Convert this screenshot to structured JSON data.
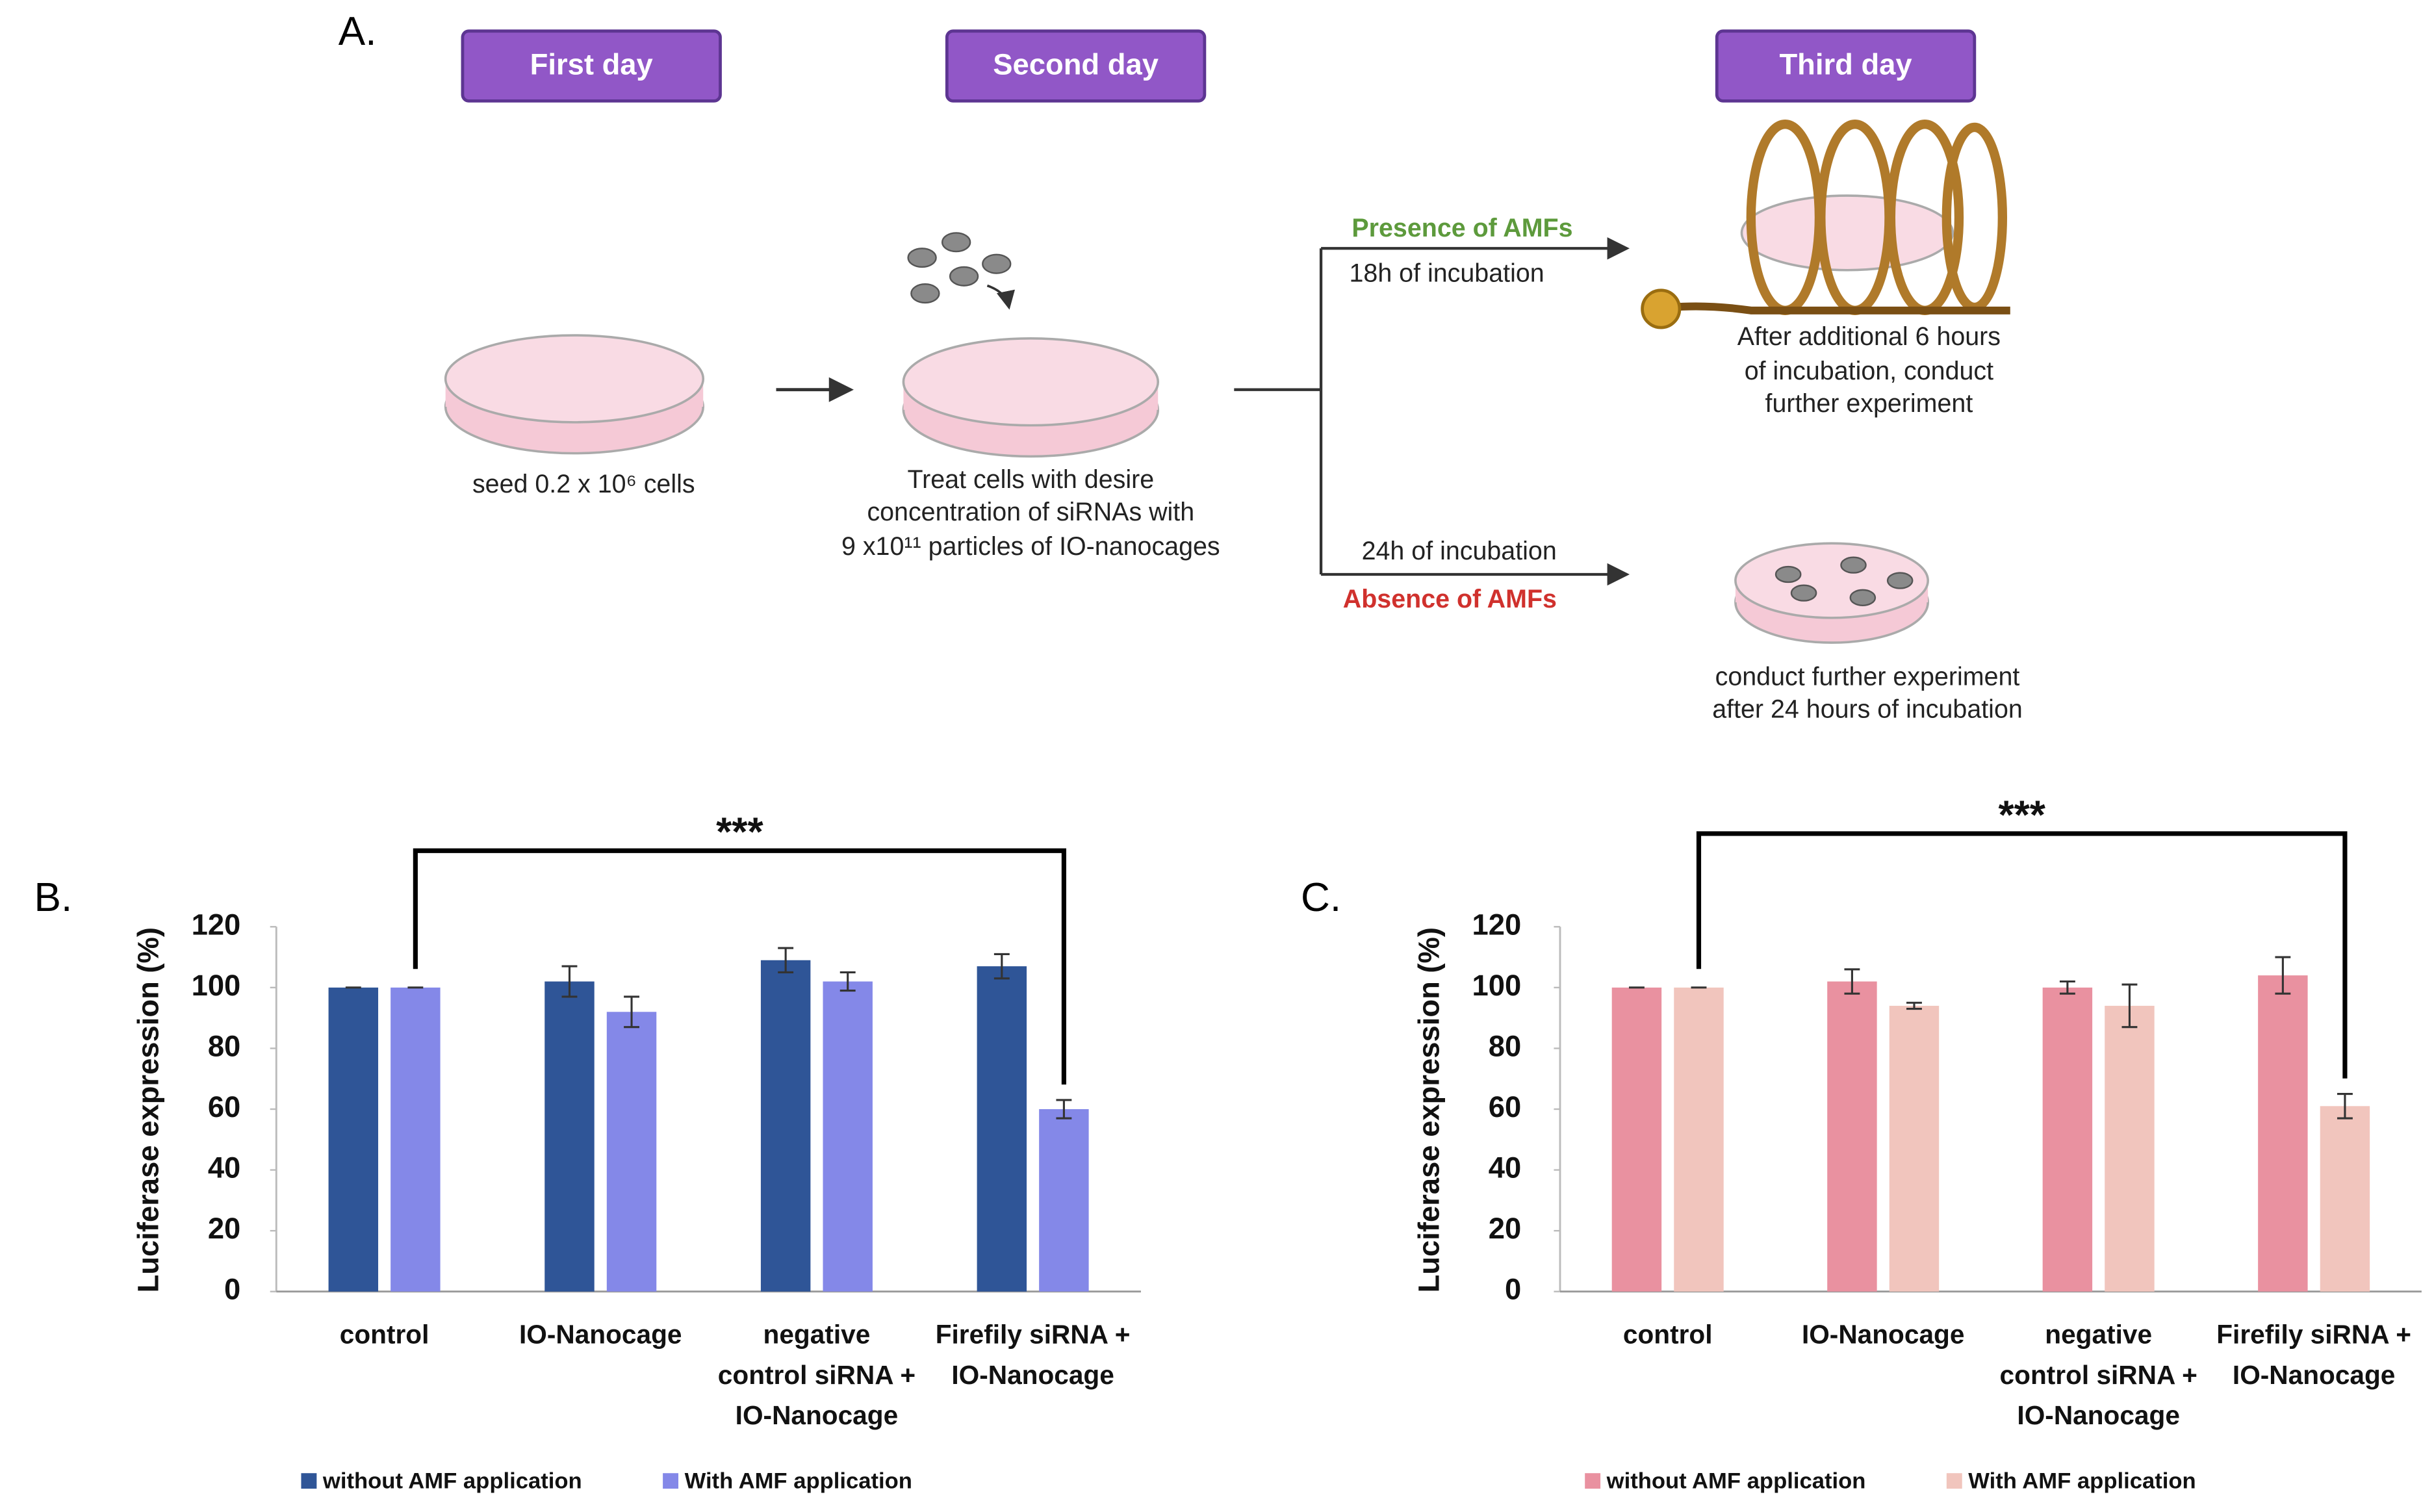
{
  "diagram": {
    "panel": "A.",
    "days": [
      "First day",
      "Second day",
      "Third day"
    ],
    "seed_text": "seed 0.2 x 10⁶ cells",
    "treat_text": [
      "Treat cells with desire",
      "concentration of siRNAs with",
      "9 x10¹¹ particles of IO-nanocages"
    ],
    "presence": "Presence of AMFs",
    "presence_time": "18h of incubation",
    "absence_time": "24h of incubation",
    "absence": "Absence of AMFs",
    "presence_result": [
      "After additional 6 hours",
      "of incubation, conduct",
      "further experiment"
    ],
    "absence_result": [
      "conduct further experiment",
      "after 24 hours of incubation"
    ]
  },
  "chart_data": [
    {
      "type": "bar",
      "panel": "B.",
      "ylabel": "Luciferase expression (%)",
      "categories": [
        [
          "control"
        ],
        [
          "IO-Nanocage"
        ],
        [
          "negative",
          "control siRNA +",
          "IO-Nanocage"
        ],
        [
          "Firefily siRNA +",
          "IO-Nanocage"
        ]
      ],
      "series": [
        {
          "name": "without AMF application",
          "color": "#2f5597",
          "values": [
            100,
            102,
            109,
            107
          ],
          "errors": [
            0,
            5,
            4,
            4
          ]
        },
        {
          "name": "With AMF application",
          "color": "#8488e8",
          "values": [
            100,
            92,
            102,
            60
          ],
          "errors": [
            0,
            5,
            3,
            3
          ]
        }
      ],
      "ylim": [
        0,
        120
      ],
      "yticks": [
        0,
        20,
        40,
        60,
        80,
        100,
        120
      ],
      "grid": false,
      "annotation": "***",
      "legend": "bottom"
    },
    {
      "type": "bar",
      "panel": "C.",
      "ylabel": "Luciferase expression (%)",
      "categories": [
        [
          "control"
        ],
        [
          "IO-Nanocage"
        ],
        [
          "negative",
          "control siRNA +",
          "IO-Nanocage"
        ],
        [
          "Firefily siRNA +",
          "IO-Nanocage"
        ]
      ],
      "series": [
        {
          "name": "without AMF application",
          "color": "#e991a0",
          "values": [
            100,
            102,
            100,
            104
          ],
          "errors": [
            0,
            4,
            2,
            6
          ]
        },
        {
          "name": "With AMF application",
          "color": "#f1c5bd",
          "values": [
            100,
            94,
            94,
            61
          ],
          "errors": [
            0,
            1,
            7,
            4
          ]
        }
      ],
      "ylim": [
        0,
        120
      ],
      "yticks": [
        0,
        20,
        40,
        60,
        80,
        100,
        120
      ],
      "grid": false,
      "annotation": "***",
      "legend": "bottom"
    }
  ]
}
